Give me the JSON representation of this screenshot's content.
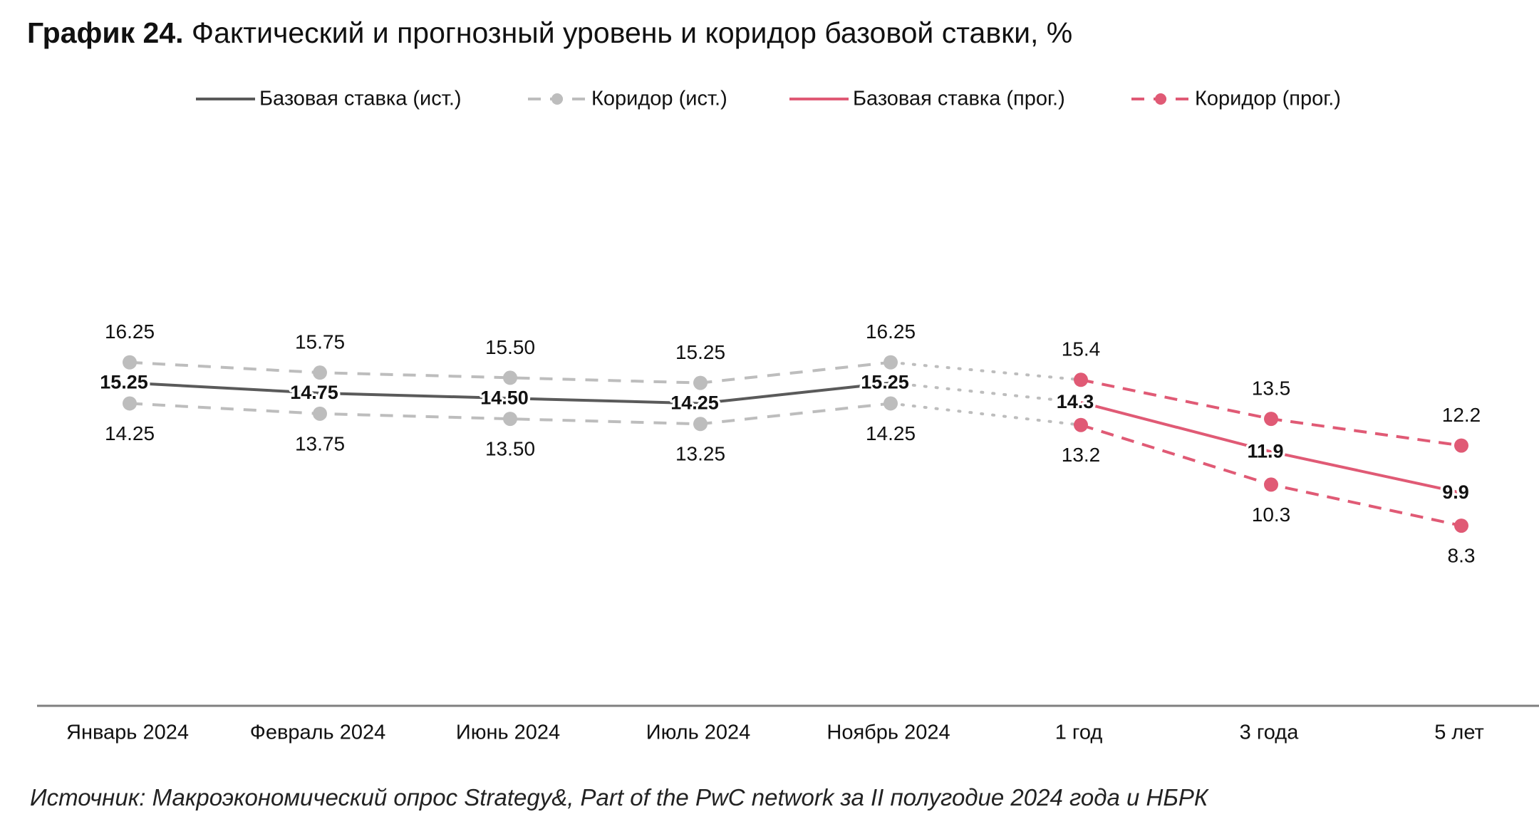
{
  "header": {
    "title_bold": "График 24.",
    "title_rest": "Фактический и прогнозный уровень и коридор базовой ставки, %"
  },
  "source": "Источник: Макроэкономический опрос Strategy&, Part of the PwC network за II полугодие 2024 года и НБРК",
  "colors": {
    "historical_base": "#5a5a5a",
    "historical_corridor": "#bdbdbd",
    "forecast": "#e05a75",
    "axis": "#7f7f7f"
  },
  "chart_data": {
    "type": "line",
    "title": "",
    "xlabel": "",
    "ylabel": "",
    "ylim": [
      6.5,
      19.5
    ],
    "grid": false,
    "legend_position": "top",
    "categories": [
      "Январь 2024",
      "Февраль 2024",
      "Июнь 2024",
      "Июль 2024",
      "Ноябрь 2024",
      "1 год",
      "3 года",
      "5 лет"
    ],
    "series": [
      {
        "name": "Базовая ставка (ист.)",
        "color": "#5a5a5a",
        "style": "solid",
        "markers": false,
        "values": [
          15.25,
          14.75,
          14.5,
          14.25,
          15.25,
          null,
          null,
          null
        ],
        "labels": [
          "15.25",
          "14.75",
          "14.50",
          "14.25",
          "15.25",
          null,
          null,
          null
        ]
      },
      {
        "name": "Коридор (ист.)",
        "color": "#bdbdbd",
        "style": "dashed",
        "markers": true,
        "bounds": [
          {
            "values": [
              16.25,
              15.75,
              15.5,
              15.25,
              16.25,
              null,
              null,
              null
            ],
            "labels": [
              "16.25",
              "15.75",
              "15.50",
              "15.25",
              "16.25",
              null,
              null,
              null
            ]
          },
          {
            "values": [
              14.25,
              13.75,
              13.5,
              13.25,
              14.25,
              null,
              null,
              null
            ],
            "labels": [
              "14.25",
              "13.75",
              "13.50",
              "13.25",
              "14.25",
              null,
              null,
              null
            ]
          }
        ]
      },
      {
        "name": "Базовая ставка (прог.)",
        "color": "#e05a75",
        "style": "solid",
        "markers": false,
        "values": [
          null,
          null,
          null,
          null,
          null,
          14.3,
          11.9,
          9.9
        ],
        "labels": [
          null,
          null,
          null,
          null,
          null,
          "14.3",
          "11.9",
          "9.9"
        ]
      },
      {
        "name": "Коридор (прог.)",
        "color": "#e05a75",
        "style": "dashed",
        "markers": true,
        "bounds": [
          {
            "values": [
              null,
              null,
              null,
              null,
              null,
              15.4,
              13.5,
              12.2
            ],
            "labels": [
              null,
              null,
              null,
              null,
              null,
              "15.4",
              "13.5",
              "12.2"
            ]
          },
          {
            "values": [
              null,
              null,
              null,
              null,
              null,
              13.2,
              10.3,
              8.3
            ],
            "labels": [
              null,
              null,
              null,
              null,
              null,
              "13.2",
              "10.3",
              "8.3"
            ]
          }
        ]
      }
    ],
    "transition_style": "dotted"
  }
}
